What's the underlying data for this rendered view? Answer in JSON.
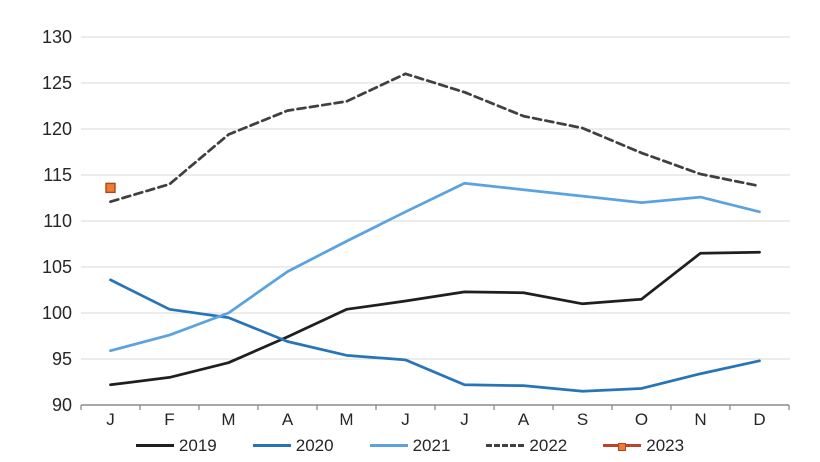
{
  "chart_data": {
    "type": "line",
    "title": "",
    "xlabel": "",
    "ylabel": "",
    "categories": [
      "J",
      "F",
      "M",
      "A",
      "M",
      "J",
      "J",
      "A",
      "S",
      "O",
      "N",
      "D"
    ],
    "series": [
      {
        "name": "2019",
        "color": "#1f1f1f",
        "style": "solid",
        "values": [
          92.2,
          93.0,
          94.6,
          97.4,
          100.4,
          101.3,
          102.3,
          102.2,
          101.0,
          101.5,
          106.5,
          106.6
        ]
      },
      {
        "name": "2020",
        "color": "#2874b8",
        "style": "solid",
        "values": [
          103.6,
          100.4,
          99.5,
          96.9,
          95.4,
          94.9,
          92.2,
          92.1,
          91.5,
          91.8,
          93.4,
          94.8
        ]
      },
      {
        "name": "2021",
        "color": "#5ba3e0",
        "style": "solid",
        "values": [
          95.9,
          97.6,
          100.0,
          104.5,
          107.8,
          111.0,
          114.1,
          113.4,
          112.7,
          112.0,
          112.6,
          111.0
        ]
      },
      {
        "name": "2022",
        "color": "#404040",
        "style": "dashed",
        "values": [
          112.1,
          114.0,
          119.4,
          122.0,
          123.0,
          126.0,
          124.0,
          121.4,
          120.1,
          117.4,
          115.1,
          113.8
        ]
      },
      {
        "name": "2023",
        "color": "#c0422b",
        "style": "marker",
        "marker_fill": "#ed7d31",
        "marker_stroke": "#a84724",
        "values": [
          113.6
        ]
      }
    ],
    "ylim": [
      90,
      130
    ],
    "ytick_step": 5,
    "ytick_labels": [
      "90",
      "95",
      "100",
      "105",
      "110",
      "115",
      "120",
      "125",
      "130"
    ],
    "grid": true,
    "legend_position": "bottom",
    "grid_color": "#d9d9d9",
    "axis_color": "#8c8c8c",
    "label_color": "#262626"
  }
}
